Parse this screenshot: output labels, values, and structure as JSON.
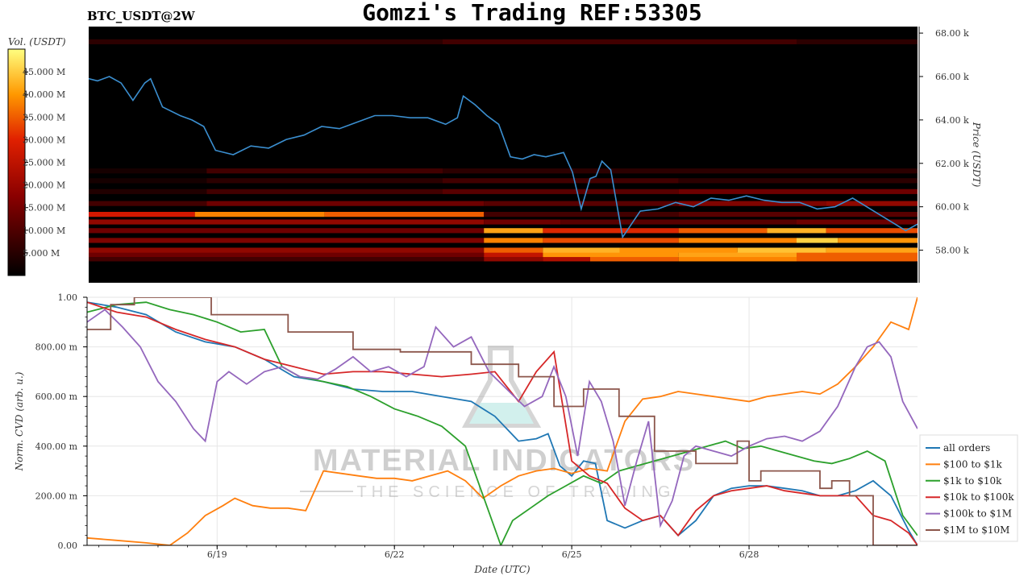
{
  "page": {
    "symbol_label": "BTC_USDT@2W",
    "title": "Gomzi's Trading REF:53305",
    "watermark": {
      "line1": "MATERIAL INDICATORS",
      "line2": "THE SCIENCE OF TRADING",
      "icon": "flask-icon"
    }
  },
  "colors": {
    "heat_low": "#000000",
    "heat_mid": "#cc1100",
    "heat_high": "#ffff66",
    "price_line": "#3b8fd0",
    "grid": "#e6e6e6"
  },
  "chart_data": [
    {
      "type": "heatmap",
      "name": "orderbook-liquidity",
      "colorbar": {
        "label": "Vol. (USDT)",
        "ticks": [
          "5.000 M",
          "10.000 M",
          "15.000 M",
          "20.000 M",
          "25.000 M",
          "30.000 M",
          "35.000 M",
          "40.000 M",
          "45.000 M"
        ],
        "tick_values": [
          5,
          10,
          15,
          20,
          25,
          30,
          35,
          40,
          45
        ],
        "range": [
          0,
          50
        ]
      },
      "ylabel": "Price (USDT)",
      "y_ticks": [
        "58.00 k",
        "60.00 k",
        "62.00 k",
        "64.00 k",
        "66.00 k",
        "68.00 k"
      ],
      "y_tick_values": [
        58000,
        60000,
        62000,
        64000,
        66000,
        68000
      ],
      "ylim": [
        56500,
        68300
      ],
      "xlim_days": [
        16.85,
        30.9
      ],
      "bands": [
        {
          "price": 57600,
          "vol": [
            [
              0,
              6
            ],
            [
              6.7,
              14
            ],
            [
              7.7,
              18
            ],
            [
              8.5,
              30
            ],
            [
              10,
              34
            ],
            [
              12,
              30
            ]
          ]
        },
        {
          "price": 57800,
          "vol": [
            [
              0,
              10
            ],
            [
              6.7,
              20
            ],
            [
              7.7,
              36
            ],
            [
              10,
              38
            ],
            [
              12,
              30
            ]
          ]
        },
        {
          "price": 58000,
          "vol": [
            [
              0,
              14
            ],
            [
              6.7,
              30
            ],
            [
              7.7,
              40
            ],
            [
              9,
              36
            ],
            [
              11,
              42
            ],
            [
              12.5,
              38
            ]
          ]
        },
        {
          "price": 58450,
          "vol": [
            [
              0,
              12
            ],
            [
              6.7,
              34
            ],
            [
              7.7,
              28
            ],
            [
              10,
              34
            ],
            [
              12,
              44
            ],
            [
              12.7,
              36
            ]
          ]
        },
        {
          "price": 58900,
          "vol": [
            [
              0,
              10
            ],
            [
              6.7,
              38
            ],
            [
              7.7,
              24
            ],
            [
              10,
              30
            ],
            [
              11.5,
              40
            ],
            [
              12.5,
              28
            ]
          ]
        },
        {
          "price": 59300,
          "vol": [
            [
              0,
              14
            ],
            [
              6.7,
              10
            ],
            [
              8,
              8
            ],
            [
              12,
              10
            ]
          ]
        },
        {
          "price": 59650,
          "vol": [
            [
              0,
              22
            ],
            [
              1.8,
              34
            ],
            [
              4,
              30
            ],
            [
              6.7,
              6
            ],
            [
              10,
              8
            ]
          ]
        },
        {
          "price": 60150,
          "vol": [
            [
              0,
              6
            ],
            [
              2,
              10
            ],
            [
              6.7,
              8
            ],
            [
              10,
              12
            ],
            [
              12.5,
              14
            ]
          ]
        },
        {
          "price": 60700,
          "vol": [
            [
              0,
              3
            ],
            [
              2,
              6
            ],
            [
              6,
              8
            ],
            [
              10,
              10
            ]
          ]
        },
        {
          "price": 61200,
          "vol": [
            [
              0,
              2
            ],
            [
              2,
              4
            ],
            [
              6,
              6
            ],
            [
              10,
              4
            ]
          ]
        },
        {
          "price": 61650,
          "vol": [
            [
              0,
              2
            ],
            [
              2,
              6
            ],
            [
              6,
              4
            ]
          ]
        },
        {
          "price": 67600,
          "vol": [
            [
              0,
              4
            ],
            [
              6,
              6
            ],
            [
              12,
              4
            ]
          ]
        }
      ],
      "price_series": {
        "name": "price",
        "t": [
          16.85,
          17.0,
          17.2,
          17.4,
          17.6,
          17.8,
          17.9,
          18.1,
          18.4,
          18.6,
          18.8,
          19.0,
          19.3,
          19.6,
          19.9,
          20.2,
          20.5,
          20.8,
          21.1,
          21.4,
          21.7,
          22.0,
          22.3,
          22.6,
          22.9,
          23.1,
          23.2,
          23.4,
          23.6,
          23.8,
          24.0,
          24.2,
          24.4,
          24.6,
          24.75,
          24.9,
          25.05,
          25.2,
          25.35,
          25.45,
          25.55,
          25.7,
          25.9,
          26.2,
          26.5,
          26.8,
          27.1,
          27.4,
          27.7,
          28.0,
          28.3,
          28.6,
          28.9,
          29.2,
          29.5,
          29.8,
          30.1,
          30.4,
          30.7,
          30.9
        ],
        "price": [
          65900,
          65800,
          66000,
          65700,
          64900,
          65700,
          65900,
          64600,
          64200,
          64000,
          63700,
          62600,
          62400,
          62800,
          62700,
          63100,
          63300,
          63700,
          63600,
          63900,
          64200,
          64200,
          64100,
          64100,
          63800,
          64100,
          65100,
          64700,
          64200,
          63800,
          62300,
          62200,
          62400,
          62300,
          62400,
          62500,
          61600,
          59900,
          61300,
          61400,
          62100,
          61700,
          58600,
          59800,
          59900,
          60200,
          60000,
          60400,
          60300,
          60500,
          60300,
          60200,
          60200,
          59900,
          60000,
          60400,
          59900,
          59400,
          58900,
          59200
        ]
      }
    },
    {
      "type": "line",
      "name": "normalized-cvd",
      "xlabel": "Date (UTC)",
      "ylabel": "Norm. CVD (arb. u.)",
      "x_ticks": [
        "6/19",
        "6/22",
        "6/25",
        "6/28"
      ],
      "x_tick_values": [
        19,
        22,
        25,
        28
      ],
      "y_ticks": [
        "0.00",
        "200.00 m",
        "400.00 m",
        "600.00 m",
        "800.00 m",
        "1.00"
      ],
      "y_tick_values": [
        0,
        0.2,
        0.4,
        0.6,
        0.8,
        1.0
      ],
      "ylim": [
        0,
        1.0
      ],
      "xlim": [
        16.8,
        30.85
      ],
      "grid": true,
      "legend": "right",
      "series": [
        {
          "name": "all orders",
          "color": "#1f77b4",
          "x": [
            16.8,
            17.3,
            17.8,
            18.3,
            18.8,
            19.3,
            19.8,
            20.3,
            20.8,
            21.3,
            21.8,
            22.3,
            22.8,
            23.3,
            23.7,
            24.1,
            24.4,
            24.6,
            24.8,
            25.0,
            25.2,
            25.4,
            25.6,
            25.9,
            26.2,
            26.5,
            26.8,
            27.1,
            27.4,
            27.7,
            28.0,
            28.3,
            28.6,
            28.9,
            29.2,
            29.5,
            29.8,
            30.1,
            30.4,
            30.7,
            30.85
          ],
          "values": [
            0.98,
            0.96,
            0.93,
            0.86,
            0.82,
            0.8,
            0.75,
            0.68,
            0.66,
            0.63,
            0.62,
            0.62,
            0.6,
            0.58,
            0.52,
            0.42,
            0.43,
            0.45,
            0.32,
            0.28,
            0.34,
            0.33,
            0.1,
            0.07,
            0.1,
            0.12,
            0.04,
            0.1,
            0.2,
            0.23,
            0.24,
            0.24,
            0.23,
            0.22,
            0.2,
            0.2,
            0.22,
            0.26,
            0.2,
            0.06,
            0.0
          ]
        },
        {
          "name": "$100 to $1k",
          "color": "#ff7f0e",
          "x": [
            16.8,
            17.3,
            17.8,
            18.2,
            18.5,
            18.8,
            19.1,
            19.3,
            19.6,
            19.9,
            20.2,
            20.5,
            20.8,
            21.1,
            21.4,
            21.7,
            22.0,
            22.3,
            22.6,
            22.9,
            23.2,
            23.5,
            23.8,
            24.1,
            24.4,
            24.7,
            25.0,
            25.3,
            25.6,
            25.9,
            26.2,
            26.5,
            26.8,
            27.1,
            27.4,
            27.7,
            28.0,
            28.3,
            28.6,
            28.9,
            29.2,
            29.5,
            29.8,
            30.1,
            30.4,
            30.7,
            30.85
          ],
          "values": [
            0.03,
            0.02,
            0.01,
            0.0,
            0.05,
            0.12,
            0.16,
            0.19,
            0.16,
            0.15,
            0.15,
            0.14,
            0.3,
            0.29,
            0.28,
            0.27,
            0.27,
            0.26,
            0.28,
            0.3,
            0.26,
            0.19,
            0.24,
            0.28,
            0.3,
            0.31,
            0.29,
            0.31,
            0.3,
            0.5,
            0.59,
            0.6,
            0.62,
            0.61,
            0.6,
            0.59,
            0.58,
            0.6,
            0.61,
            0.62,
            0.61,
            0.65,
            0.72,
            0.8,
            0.9,
            0.87,
            1.0
          ]
        },
        {
          "name": "$1k to $10k",
          "color": "#2ca02c",
          "x": [
            16.8,
            17.3,
            17.8,
            18.2,
            18.6,
            19.0,
            19.4,
            19.8,
            20.1,
            20.4,
            20.8,
            21.2,
            21.6,
            22.0,
            22.4,
            22.8,
            23.2,
            23.5,
            23.8,
            24.0,
            24.3,
            24.6,
            24.9,
            25.2,
            25.5,
            25.8,
            26.1,
            26.4,
            26.7,
            27.0,
            27.3,
            27.6,
            27.9,
            28.2,
            28.5,
            28.8,
            29.1,
            29.4,
            29.7,
            30.0,
            30.3,
            30.6,
            30.85
          ],
          "values": [
            0.94,
            0.97,
            0.98,
            0.95,
            0.93,
            0.9,
            0.86,
            0.87,
            0.72,
            0.68,
            0.66,
            0.64,
            0.6,
            0.55,
            0.52,
            0.48,
            0.4,
            0.2,
            0.0,
            0.1,
            0.15,
            0.2,
            0.24,
            0.28,
            0.25,
            0.3,
            0.32,
            0.34,
            0.36,
            0.38,
            0.4,
            0.42,
            0.39,
            0.4,
            0.38,
            0.36,
            0.34,
            0.33,
            0.35,
            0.38,
            0.34,
            0.12,
            0.04
          ]
        },
        {
          "name": "$10k to $100k",
          "color": "#d62728",
          "x": [
            16.8,
            17.3,
            17.8,
            18.3,
            18.8,
            19.3,
            19.8,
            20.3,
            20.8,
            21.3,
            21.8,
            22.3,
            22.8,
            23.3,
            23.7,
            24.1,
            24.4,
            24.7,
            25.0,
            25.3,
            25.6,
            25.9,
            26.2,
            26.5,
            26.8,
            27.1,
            27.4,
            27.7,
            28.0,
            28.3,
            28.6,
            28.9,
            29.2,
            29.5,
            29.8,
            30.1,
            30.4,
            30.7,
            30.85
          ],
          "values": [
            0.98,
            0.94,
            0.92,
            0.87,
            0.83,
            0.8,
            0.75,
            0.72,
            0.69,
            0.7,
            0.7,
            0.69,
            0.68,
            0.69,
            0.7,
            0.58,
            0.7,
            0.78,
            0.34,
            0.28,
            0.25,
            0.15,
            0.1,
            0.12,
            0.04,
            0.14,
            0.2,
            0.22,
            0.23,
            0.24,
            0.22,
            0.21,
            0.2,
            0.2,
            0.2,
            0.12,
            0.1,
            0.05,
            0.0
          ]
        },
        {
          "name": "$100k to $1M",
          "color": "#9467bd",
          "x": [
            16.8,
            17.1,
            17.4,
            17.7,
            18.0,
            18.3,
            18.6,
            18.8,
            19.0,
            19.2,
            19.5,
            19.8,
            20.1,
            20.4,
            20.7,
            21.0,
            21.3,
            21.6,
            21.9,
            22.2,
            22.5,
            22.7,
            23.0,
            23.3,
            23.6,
            23.9,
            24.2,
            24.5,
            24.7,
            24.9,
            25.1,
            25.3,
            25.5,
            25.7,
            25.9,
            26.1,
            26.3,
            26.5,
            26.7,
            26.9,
            27.1,
            27.4,
            27.7,
            28.0,
            28.3,
            28.6,
            28.9,
            29.2,
            29.5,
            29.8,
            30.0,
            30.2,
            30.4,
            30.6,
            30.85
          ],
          "values": [
            0.9,
            0.95,
            0.88,
            0.8,
            0.66,
            0.58,
            0.47,
            0.42,
            0.66,
            0.7,
            0.65,
            0.7,
            0.72,
            0.68,
            0.67,
            0.71,
            0.76,
            0.7,
            0.72,
            0.68,
            0.72,
            0.88,
            0.8,
            0.84,
            0.7,
            0.63,
            0.56,
            0.6,
            0.72,
            0.6,
            0.36,
            0.66,
            0.58,
            0.42,
            0.16,
            0.34,
            0.5,
            0.08,
            0.18,
            0.36,
            0.4,
            0.38,
            0.36,
            0.4,
            0.43,
            0.44,
            0.42,
            0.46,
            0.56,
            0.72,
            0.8,
            0.82,
            0.76,
            0.58,
            0.47
          ]
        },
        {
          "name": "$1M to $10M",
          "color": "#8c564b",
          "x": [
            16.8,
            17.2,
            17.2,
            17.6,
            17.6,
            18.9,
            18.9,
            20.2,
            20.2,
            21.3,
            21.3,
            22.1,
            22.1,
            23.3,
            23.3,
            24.1,
            24.1,
            24.7,
            24.7,
            25.2,
            25.2,
            25.8,
            25.8,
            26.4,
            26.4,
            27.1,
            27.1,
            27.8,
            27.8,
            28.0,
            28.0,
            28.2,
            28.2,
            29.2,
            29.2,
            29.4,
            29.4,
            29.7,
            29.7,
            30.1,
            30.1,
            30.85
          ],
          "values": [
            0.87,
            0.87,
            0.97,
            0.97,
            1.0,
            1.0,
            0.93,
            0.93,
            0.86,
            0.86,
            0.79,
            0.79,
            0.78,
            0.78,
            0.73,
            0.73,
            0.68,
            0.68,
            0.56,
            0.56,
            0.63,
            0.63,
            0.52,
            0.52,
            0.38,
            0.38,
            0.33,
            0.33,
            0.42,
            0.42,
            0.26,
            0.26,
            0.3,
            0.3,
            0.23,
            0.23,
            0.26,
            0.26,
            0.2,
            0.2,
            0.0,
            0.0
          ]
        }
      ]
    }
  ]
}
